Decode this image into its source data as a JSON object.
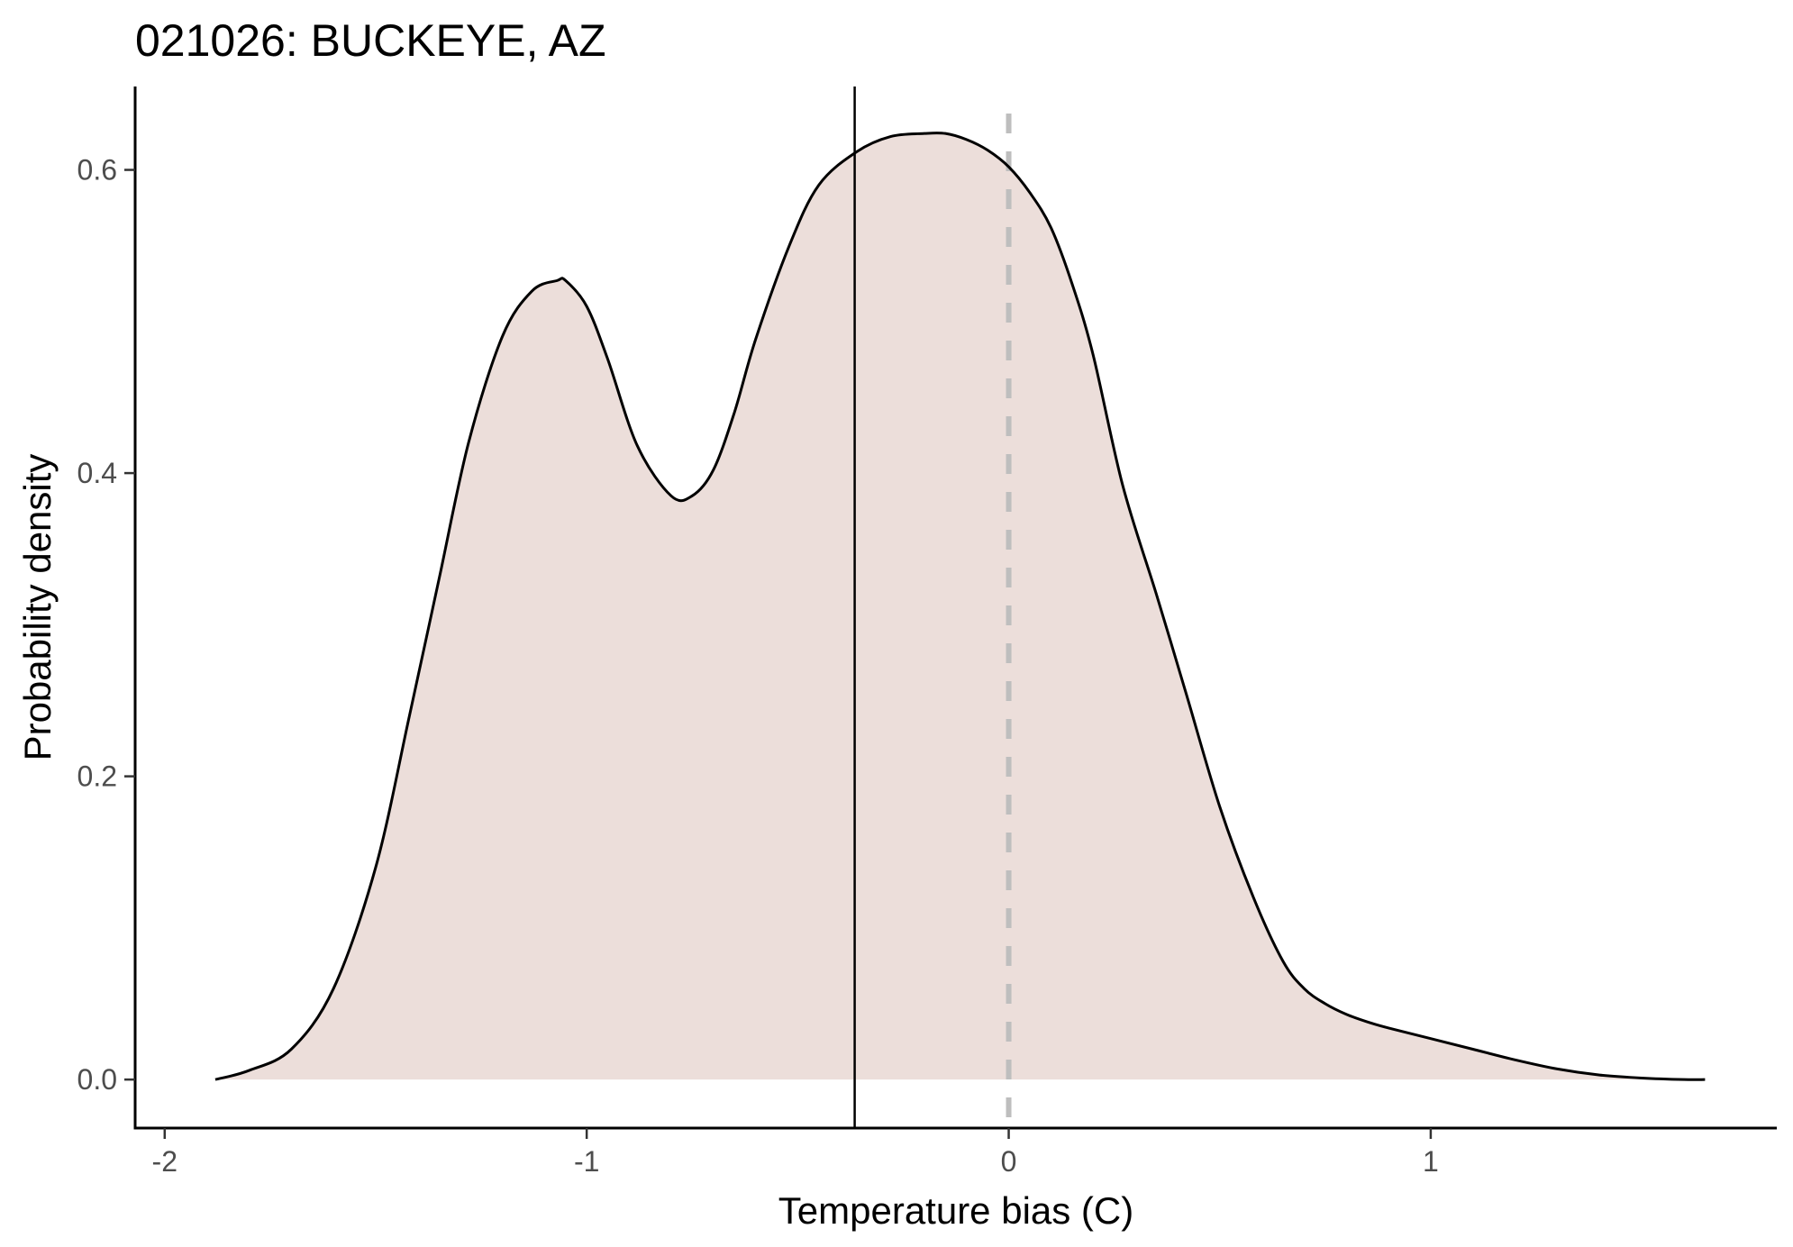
{
  "chart_data": {
    "type": "area",
    "title": "021026: BUCKEYE, AZ",
    "xlabel": "Temperature bias (C)",
    "ylabel": "Probability density",
    "xlim": [
      -2.07,
      1.82
    ],
    "ylim": [
      -0.032,
      0.655
    ],
    "x_ticks": [
      -2,
      -1,
      0,
      1
    ],
    "x_tick_labels": [
      "-2",
      "-1",
      "0",
      "1"
    ],
    "y_ticks": [
      0.0,
      0.2,
      0.4,
      0.6
    ],
    "y_tick_labels": [
      "0.0",
      "0.2",
      "0.4",
      "0.6"
    ],
    "grid": false,
    "legend": "none",
    "fill_color": "#ecdeda",
    "line_color": "#000000",
    "density": {
      "x": [
        -1.88,
        -1.8,
        -1.7,
        -1.6,
        -1.5,
        -1.42,
        -1.35,
        -1.28,
        -1.2,
        -1.13,
        -1.07,
        -1.05,
        -1.0,
        -0.95,
        -0.88,
        -0.8,
        -0.75,
        -0.7,
        -0.65,
        -0.6,
        -0.52,
        -0.45,
        -0.36,
        -0.28,
        -0.2,
        -0.15,
        -0.1,
        -0.05,
        0.0,
        0.05,
        0.1,
        0.15,
        0.2,
        0.27,
        0.35,
        0.42,
        0.5,
        0.58,
        0.65,
        0.7,
        0.75,
        0.8,
        0.85,
        0.9,
        1.0,
        1.1,
        1.2,
        1.3,
        1.4,
        1.5,
        1.6,
        1.65
      ],
      "y": [
        0.0,
        0.006,
        0.02,
        0.06,
        0.14,
        0.24,
        0.33,
        0.42,
        0.49,
        0.52,
        0.527,
        0.527,
        0.51,
        0.475,
        0.418,
        0.385,
        0.385,
        0.402,
        0.44,
        0.488,
        0.55,
        0.59,
        0.612,
        0.622,
        0.624,
        0.624,
        0.62,
        0.613,
        0.602,
        0.585,
        0.562,
        0.525,
        0.478,
        0.392,
        0.32,
        0.255,
        0.18,
        0.12,
        0.078,
        0.06,
        0.05,
        0.043,
        0.038,
        0.034,
        0.027,
        0.02,
        0.013,
        0.007,
        0.003,
        0.001,
        0.0,
        0.0
      ]
    },
    "vlines": [
      {
        "x": -0.365,
        "style": "solid",
        "color": "#000000"
      },
      {
        "x": 0.0,
        "style": "dashed",
        "color": "#bebebe"
      }
    ]
  }
}
